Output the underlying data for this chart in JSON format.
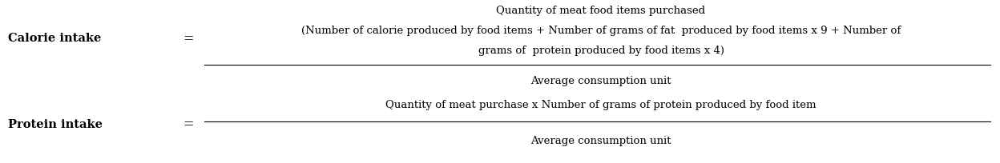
{
  "background_color": "#ffffff",
  "formula1_label": "Calorie intake",
  "formula1_equals": "=",
  "formula1_numerator_line1": "Quantity of meat food items purchased",
  "formula1_numerator_line2": "(Number of calorie produced by food items + Number of grams of fat  produced by food items x 9 + Number of",
  "formula1_numerator_line3": "grams of  protein produced by food items x 4)",
  "formula1_denominator": "Average consumption unit",
  "formula2_label": "Protein intake",
  "formula2_equals": "=",
  "formula2_numerator": "Quantity of meat purchase x Number of grams of protein produced by food item",
  "formula2_denominator": "Average consumption unit",
  "font_size_label": 10.5,
  "font_size_formula": 9.5,
  "text_color": "#000000",
  "fig_width": 12.48,
  "fig_height": 2.05,
  "dpi": 100
}
